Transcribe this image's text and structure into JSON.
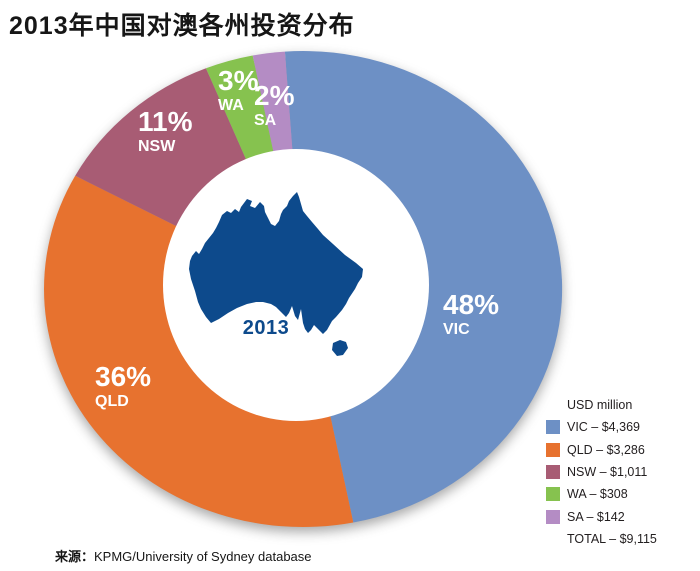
{
  "chart_data": {
    "type": "donut",
    "title": "2013年中国对澳各州投资分布",
    "center_label": "2013",
    "legend_title": "USD million",
    "unit": "USD million",
    "slices": [
      {
        "name": "VIC",
        "pct": 48,
        "pct_label": "48%",
        "value_usd_million": 4369,
        "legend_label": "VIC – $4,369",
        "color": "#6d90c5"
      },
      {
        "name": "QLD",
        "pct": 36,
        "pct_label": "36%",
        "value_usd_million": 3286,
        "legend_label": "QLD – $3,286",
        "color": "#e7722f"
      },
      {
        "name": "NSW",
        "pct": 11,
        "pct_label": "11%",
        "value_usd_million": 1011,
        "legend_label": "NSW – $1,011",
        "color": "#a85c74"
      },
      {
        "name": "WA",
        "pct": 3,
        "pct_label": "3%",
        "value_usd_million": 308,
        "legend_label": "WA – $308",
        "color": "#86c24f"
      },
      {
        "name": "SA",
        "pct": 2,
        "pct_label": "2%",
        "value_usd_million": 142,
        "legend_label": "SA – $142",
        "color": "#b48cc4"
      }
    ],
    "total": {
      "legend_label": "TOTAL – $9,115",
      "value_usd_million": 9115
    },
    "rotation_deg": -4,
    "legend_position": "bottom-right",
    "map_color": "#0d4a8c",
    "center_label_color": "#0d4a8c"
  },
  "source": {
    "prefix": "来源：",
    "text": "KPMG/University of Sydney database"
  }
}
